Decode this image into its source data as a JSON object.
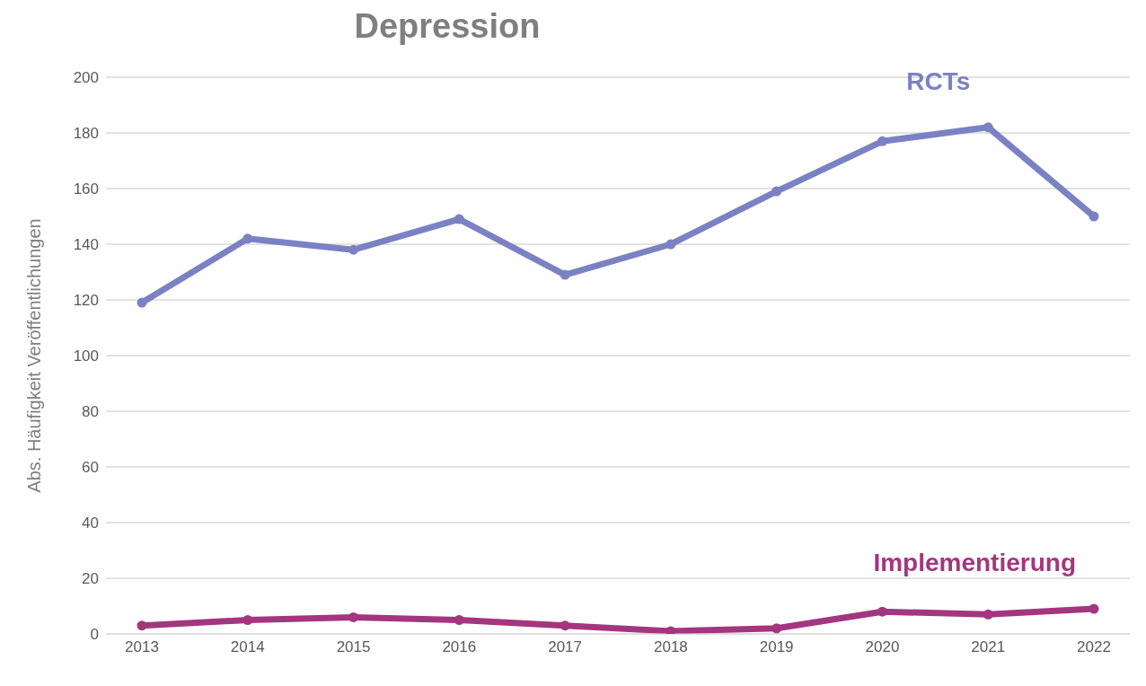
{
  "chart_data": {
    "type": "line",
    "title": "Depression",
    "ylabel": "Abs. Häufigkeit Veröffentlichungen",
    "categories": [
      "2013",
      "2014",
      "2015",
      "2016",
      "2017",
      "2018",
      "2019",
      "2020",
      "2021",
      "2022"
    ],
    "series": [
      {
        "name": "RCTs",
        "color": "#7a82c3",
        "values": [
          119,
          142,
          138,
          149,
          129,
          140,
          159,
          177,
          182,
          150
        ]
      },
      {
        "name": "Implementierung",
        "color": "#a3367e",
        "values": [
          3,
          5,
          6,
          5,
          3,
          1,
          2,
          8,
          7,
          9
        ]
      }
    ],
    "ylim": [
      0,
      200
    ],
    "yticks": [
      0,
      20,
      40,
      60,
      80,
      100,
      120,
      140,
      160,
      180,
      200
    ],
    "grid": "y",
    "marker": "circle",
    "line_style": "solid"
  }
}
